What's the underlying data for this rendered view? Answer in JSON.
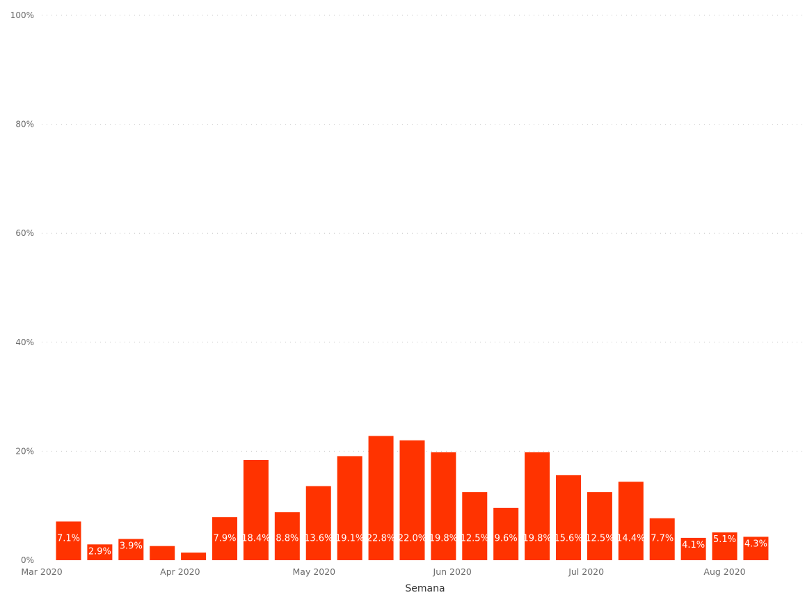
{
  "chart_data": {
    "type": "bar",
    "xlabel": "Semana",
    "ylabel": "",
    "ylim": [
      0,
      100
    ],
    "y_ticks": [
      "0%",
      "20%",
      "40%",
      "60%",
      "80%",
      "100%"
    ],
    "y_tick_values": [
      0,
      20,
      40,
      60,
      80,
      100
    ],
    "x_tick_labels": [
      "Mar 2020",
      "Apr 2020",
      "May 2020",
      "Jun 2020",
      "Jul 2020",
      "Aug 2020"
    ],
    "x_tick_dates": [
      "2020-03-01",
      "2020-04-01",
      "2020-05-01",
      "2020-06-01",
      "2020-07-01",
      "2020-08-01"
    ],
    "x_range": [
      "2020-03-01",
      "2020-08-19"
    ],
    "grid": true,
    "bar_color": "#ff3300",
    "bars": [
      {
        "week": "2020-03-07",
        "value": 7.1,
        "label": "7.1%"
      },
      {
        "week": "2020-03-14",
        "value": 2.9,
        "label": "2.9%"
      },
      {
        "week": "2020-03-21",
        "value": 3.9,
        "label": "3.9%"
      },
      {
        "week": "2020-03-28",
        "value": 2.6,
        "label": ""
      },
      {
        "week": "2020-04-04",
        "value": 1.4,
        "label": ""
      },
      {
        "week": "2020-04-11",
        "value": 7.9,
        "label": "7.9%"
      },
      {
        "week": "2020-04-18",
        "value": 18.4,
        "label": "18.4%"
      },
      {
        "week": "2020-04-25",
        "value": 8.8,
        "label": "8.8%"
      },
      {
        "week": "2020-05-02",
        "value": 13.6,
        "label": "13.6%"
      },
      {
        "week": "2020-05-09",
        "value": 19.1,
        "label": "19.1%"
      },
      {
        "week": "2020-05-16",
        "value": 22.8,
        "label": "22.8%"
      },
      {
        "week": "2020-05-23",
        "value": 22.0,
        "label": "22.0%"
      },
      {
        "week": "2020-05-30",
        "value": 19.8,
        "label": "19.8%"
      },
      {
        "week": "2020-06-06",
        "value": 12.5,
        "label": "12.5%"
      },
      {
        "week": "2020-06-13",
        "value": 9.6,
        "label": "9.6%"
      },
      {
        "week": "2020-06-20",
        "value": 19.8,
        "label": "19.8%"
      },
      {
        "week": "2020-06-27",
        "value": 15.6,
        "label": "15.6%"
      },
      {
        "week": "2020-07-04",
        "value": 12.5,
        "label": "12.5%"
      },
      {
        "week": "2020-07-11",
        "value": 14.4,
        "label": "14.4%"
      },
      {
        "week": "2020-07-18",
        "value": 7.7,
        "label": "7.7%"
      },
      {
        "week": "2020-07-25",
        "value": 4.1,
        "label": "4.1%"
      },
      {
        "week": "2020-08-01",
        "value": 5.1,
        "label": "5.1%"
      },
      {
        "week": "2020-08-08",
        "value": 4.3,
        "label": "4.3%"
      }
    ]
  }
}
